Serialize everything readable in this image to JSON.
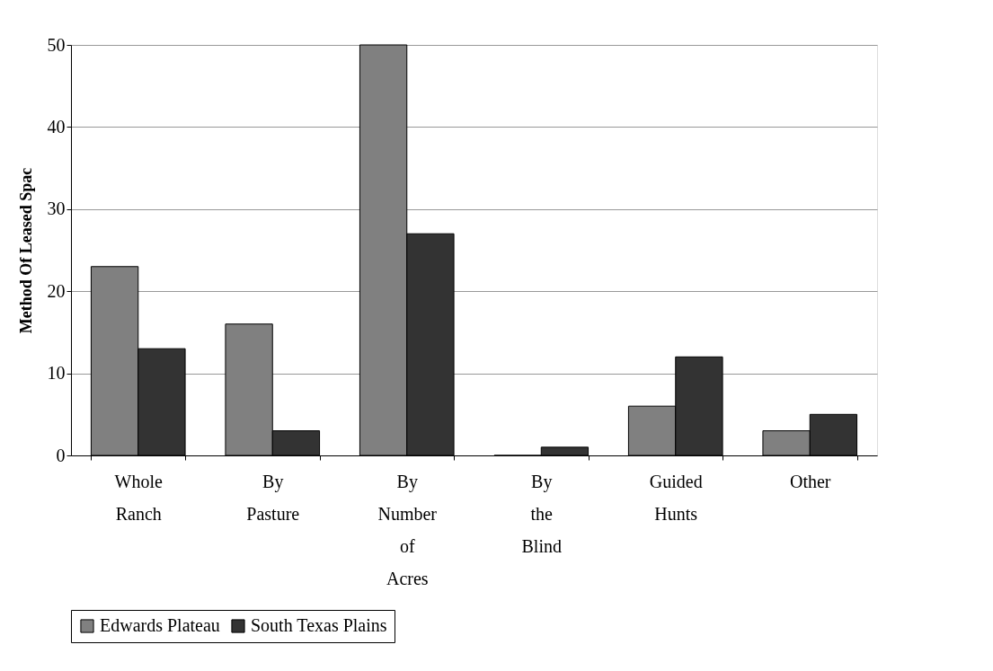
{
  "chart_data": {
    "type": "bar",
    "ylabel": "Method Of Leased Spac",
    "categories": [
      "Whole Ranch",
      "By Pasture",
      "By Number of Acres",
      "By the Blind",
      "Guided Hunts",
      "Other"
    ],
    "series": [
      {
        "name": "Edwards Plateau",
        "color": "#808080",
        "values": [
          23,
          16,
          50,
          0,
          6,
          3
        ]
      },
      {
        "name": "South Texas Plains",
        "color": "#333333",
        "values": [
          13,
          3,
          27,
          1,
          12,
          5
        ]
      }
    ],
    "ylim": [
      0,
      50
    ],
    "yticks": [
      0,
      10,
      20,
      30,
      40,
      50
    ],
    "grid": "y",
    "legend": "bottom"
  }
}
